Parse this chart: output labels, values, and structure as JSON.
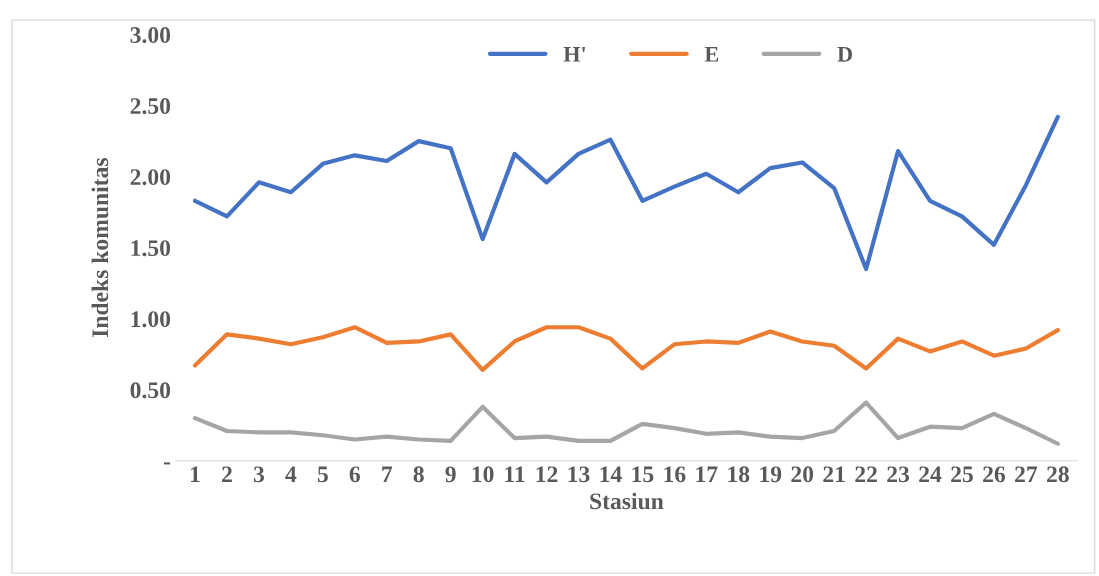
{
  "chart_data": {
    "type": "line",
    "xlabel": "Stasiun",
    "ylabel": "Indeks komunitas",
    "categories": [
      "1",
      "2",
      "3",
      "4",
      "5",
      "6",
      "7",
      "8",
      "9",
      "10",
      "11",
      "12",
      "13",
      "14",
      "15",
      "16",
      "17",
      "18",
      "19",
      "20",
      "21",
      "22",
      "23",
      "24",
      "25",
      "26",
      "27",
      "28"
    ],
    "series": [
      {
        "name": "H'",
        "color": "#4472c4",
        "values": [
          1.83,
          1.72,
          1.96,
          1.89,
          2.09,
          2.15,
          2.11,
          2.25,
          2.2,
          1.56,
          2.16,
          1.96,
          2.16,
          2.26,
          1.83,
          1.93,
          2.02,
          1.89,
          2.06,
          2.1,
          1.92,
          1.35,
          2.18,
          1.83,
          1.72,
          1.52,
          1.94,
          2.42
        ]
      },
      {
        "name": "E",
        "color": "#ed7d31",
        "values": [
          0.67,
          0.89,
          0.86,
          0.82,
          0.87,
          0.94,
          0.83,
          0.84,
          0.89,
          0.64,
          0.84,
          0.94,
          0.94,
          0.86,
          0.65,
          0.82,
          0.84,
          0.83,
          0.91,
          0.84,
          0.81,
          0.65,
          0.86,
          0.77,
          0.84,
          0.74,
          0.79,
          0.92
        ]
      },
      {
        "name": "D",
        "color": "#a5a5a5",
        "values": [
          0.3,
          0.21,
          0.2,
          0.2,
          0.18,
          0.15,
          0.17,
          0.15,
          0.14,
          0.38,
          0.16,
          0.17,
          0.14,
          0.14,
          0.26,
          0.23,
          0.19,
          0.2,
          0.17,
          0.16,
          0.21,
          0.41,
          0.16,
          0.24,
          0.23,
          0.33,
          0.23,
          0.12
        ]
      }
    ],
    "ylim": [
      0,
      3
    ],
    "yticks": [
      {
        "value": 0,
        "label": "-"
      },
      {
        "value": 0.5,
        "label": "0.50"
      },
      {
        "value": 1,
        "label": "1.00"
      },
      {
        "value": 1.5,
        "label": "1.50"
      },
      {
        "value": 2,
        "label": "2.00"
      },
      {
        "value": 2.5,
        "label": "2.50"
      },
      {
        "value": 3,
        "label": "3.00"
      }
    ],
    "grid": false,
    "legend": "top",
    "marker": "none",
    "line_style": "solid"
  }
}
